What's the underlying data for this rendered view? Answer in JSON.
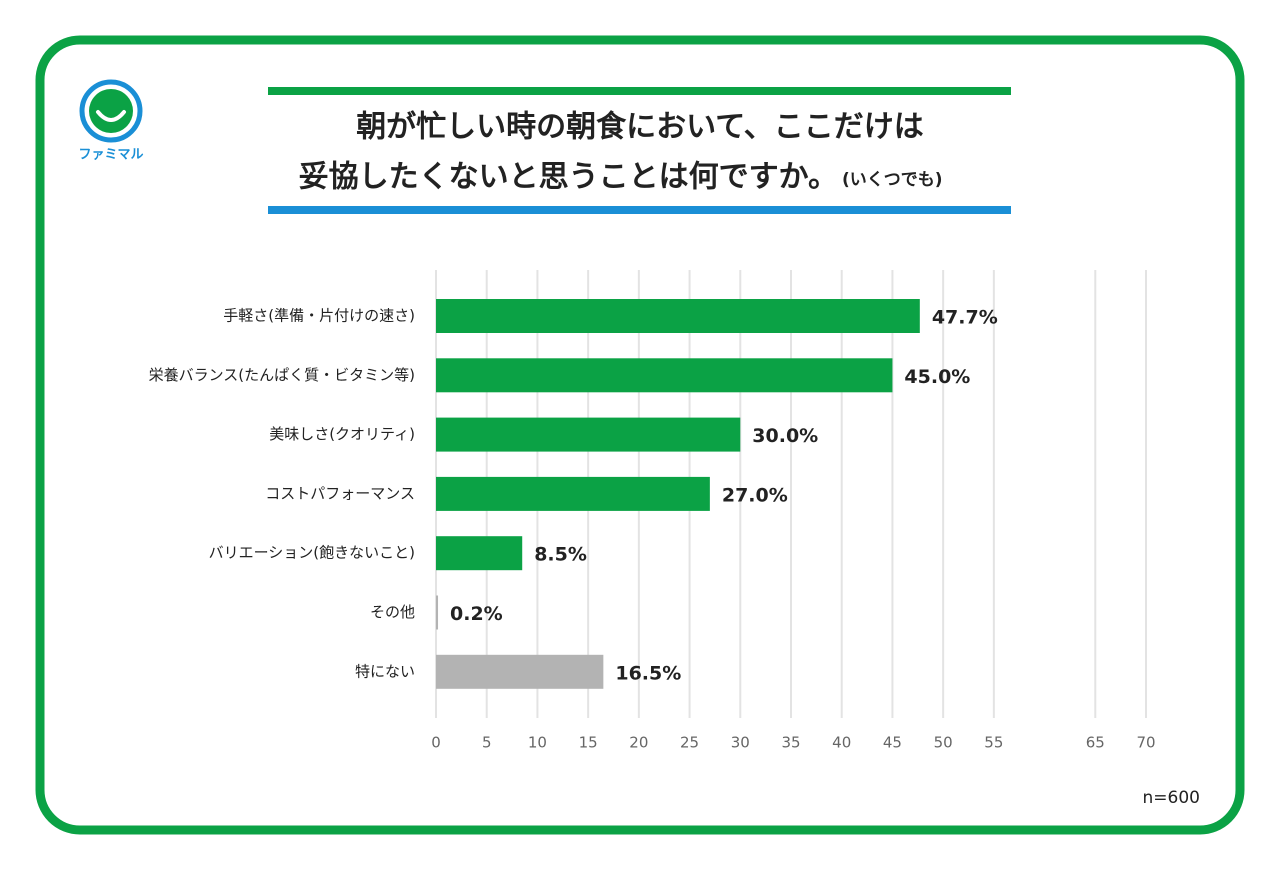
{
  "logo": "ファミマル",
  "chart_data": {
    "type": "bar",
    "orientation": "horizontal",
    "title": [
      "朝が忙しい時の朝食において、ここだけは",
      "妥協したくないと思うことは何ですか。"
    ],
    "subtitle": "(いくつでも)",
    "categories": [
      "手軽さ(準備・片付けの速さ)",
      "栄養バランス(たんぱく質・ビタミン等)",
      "美味しさ(クオリティ)",
      "コストパフォーマンス",
      "バリエーション(飽きないこと)",
      "その他",
      "特にない"
    ],
    "values": [
      47.7,
      45.0,
      30.0,
      27.0,
      8.5,
      0.2,
      16.5
    ],
    "value_labels": [
      "47.7%",
      "45.0%",
      "30.0%",
      "27.0%",
      "8.5%",
      "0.2%",
      "16.5%"
    ],
    "colors": [
      "#0ba245",
      "#0ba245",
      "#0ba245",
      "#0ba245",
      "#0ba245",
      "#b3b3b3",
      "#b3b3b3"
    ],
    "xlim": [
      0,
      70
    ],
    "xticks": [
      0,
      5,
      10,
      15,
      20,
      25,
      30,
      35,
      40,
      45,
      50,
      55,
      65,
      70
    ],
    "grid": true,
    "note": "n=600"
  }
}
